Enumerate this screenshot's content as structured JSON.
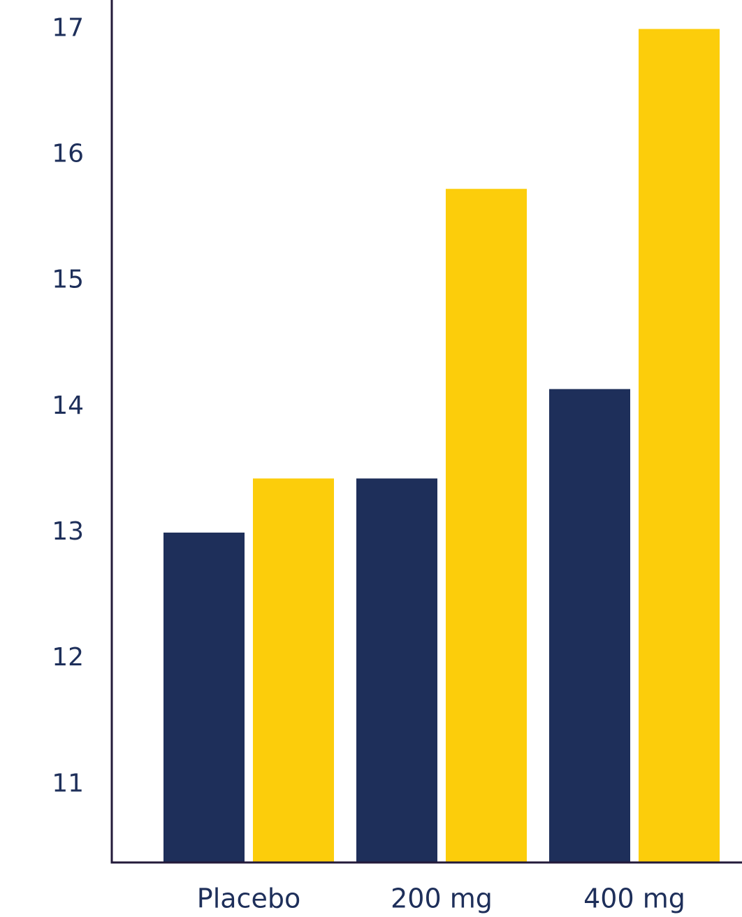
{
  "chart_data": {
    "type": "bar",
    "categories": [
      "Placebo",
      "200 mg",
      "400 mg"
    ],
    "series": [
      {
        "color": "#1e2f5a",
        "values": [
          13.0,
          13.43,
          14.14
        ]
      },
      {
        "color": "#fccd0b",
        "values": [
          13.43,
          15.73,
          17.0
        ]
      }
    ],
    "ylim": [
      10.38,
      17.23
    ],
    "yticks": [
      11,
      12,
      13,
      14,
      15,
      16,
      17
    ],
    "grid": false
  }
}
